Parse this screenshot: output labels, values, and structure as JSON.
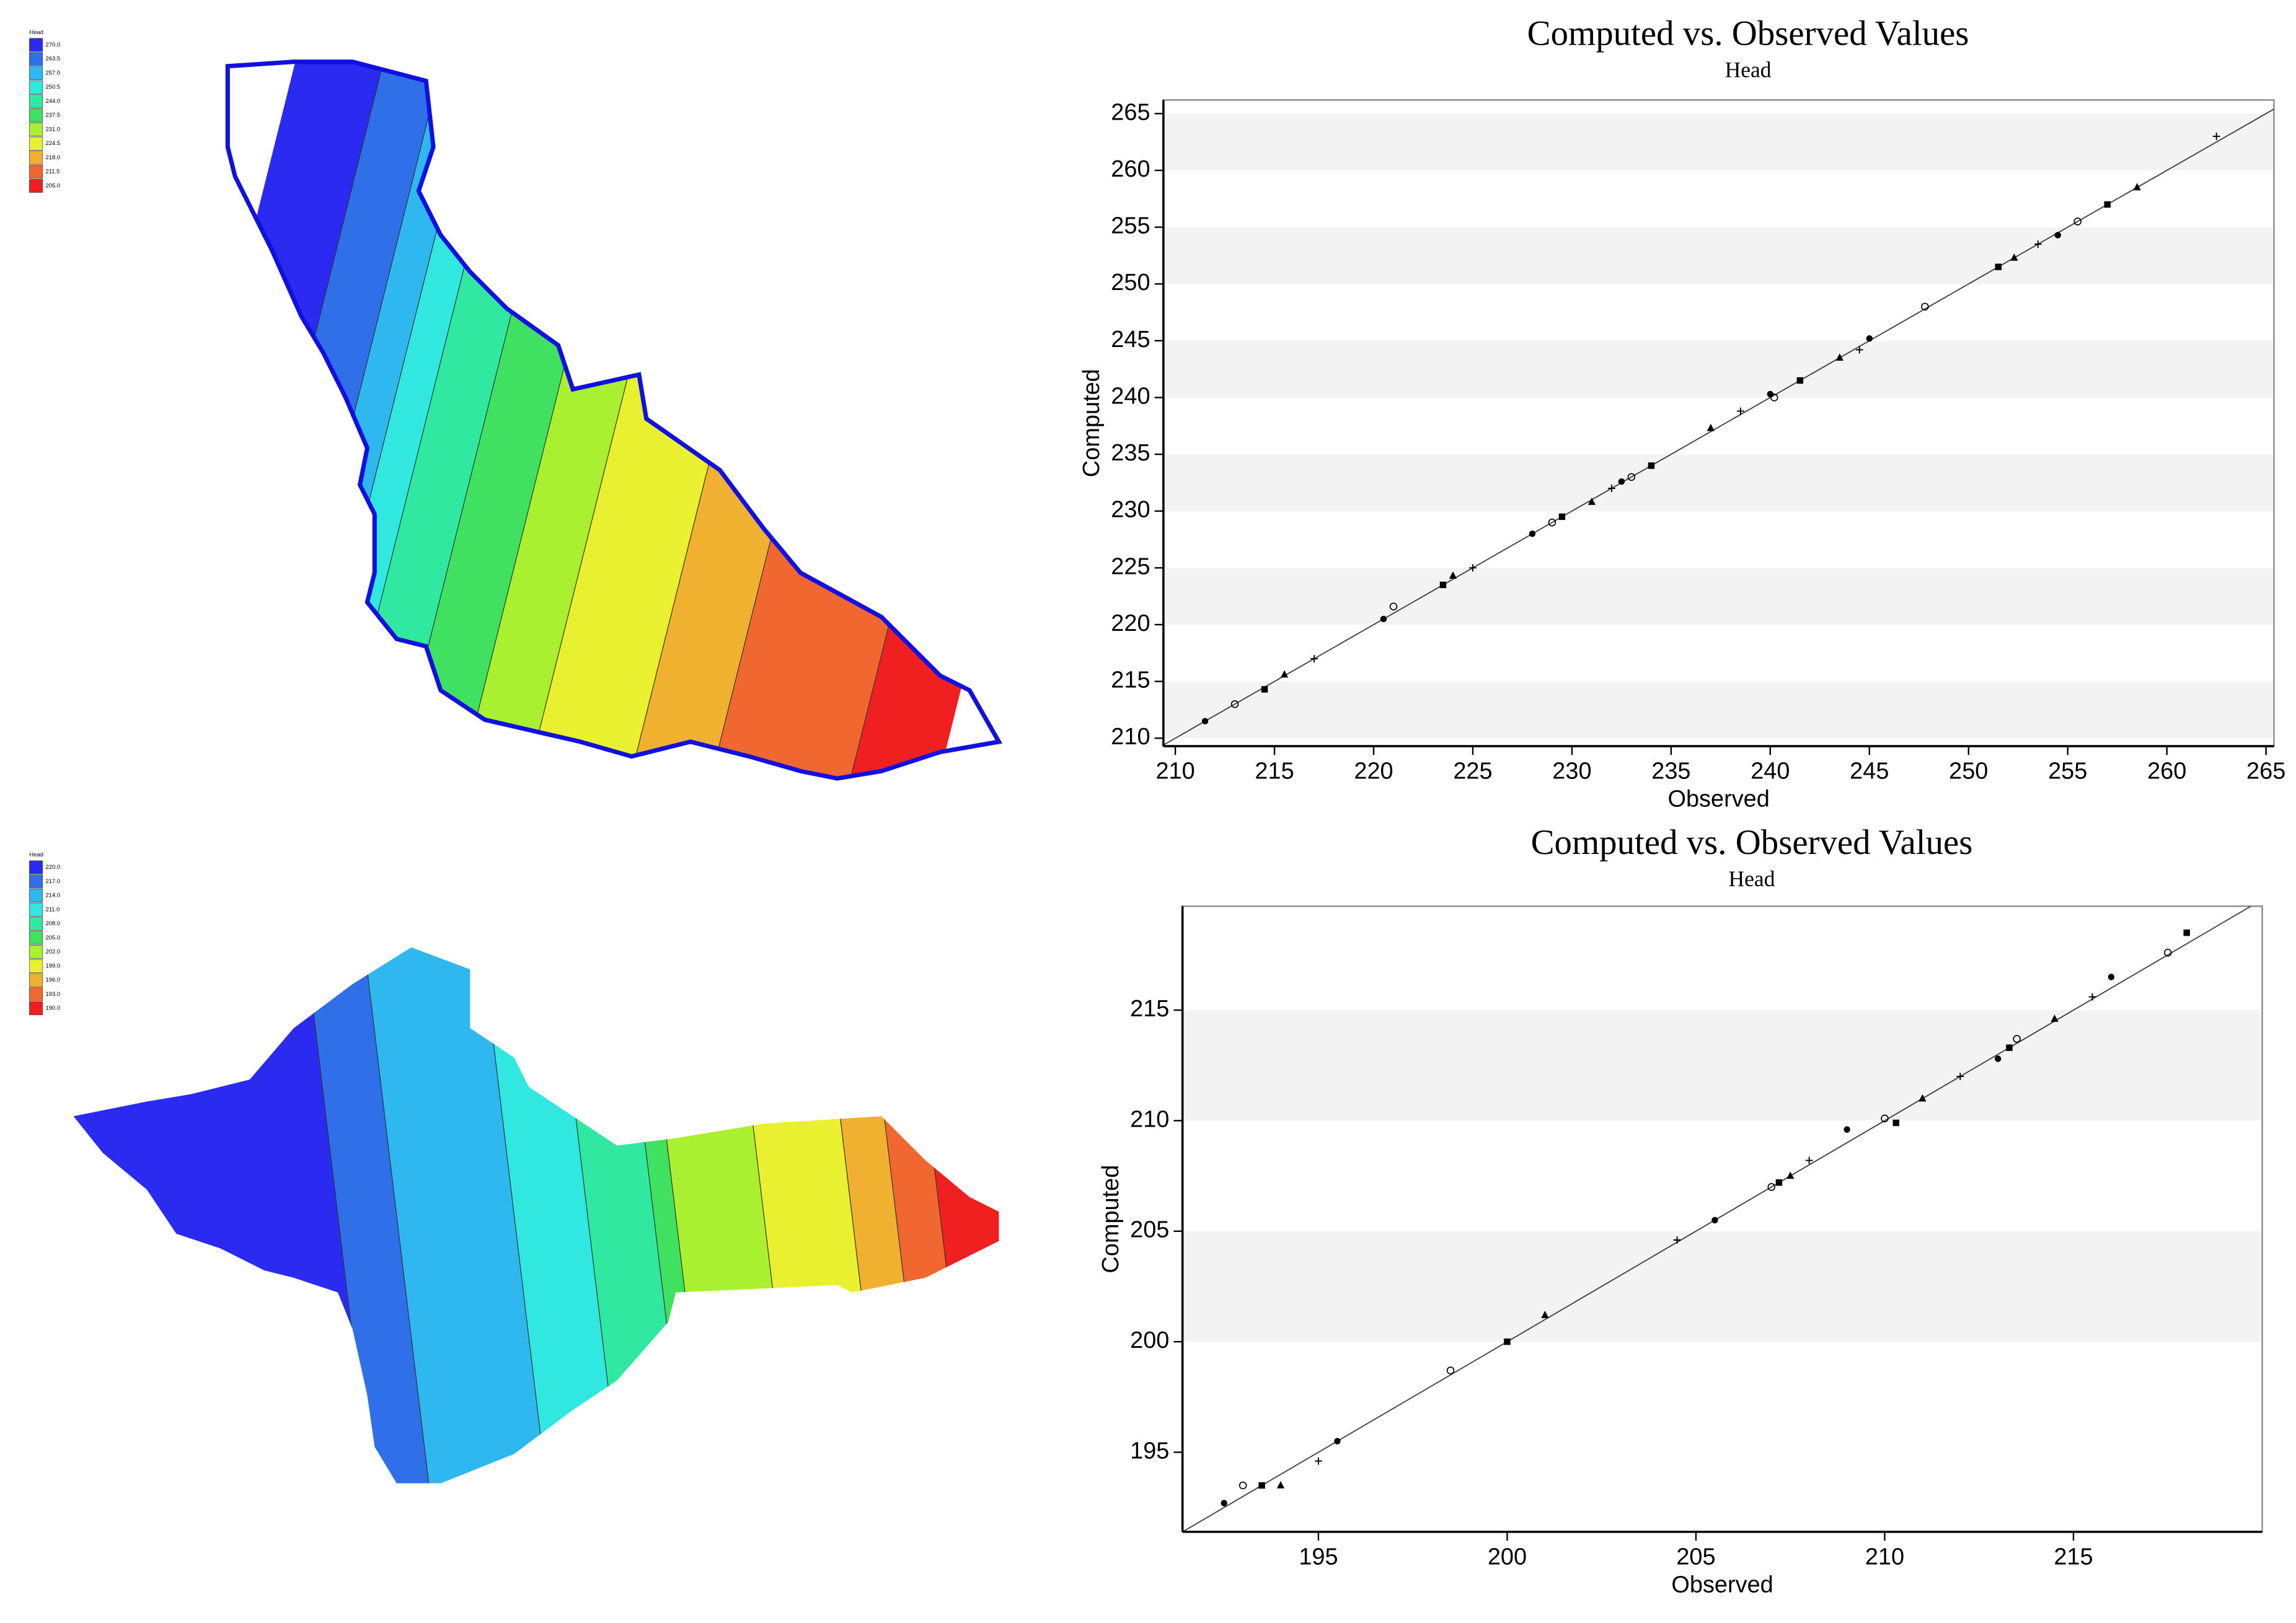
{
  "maps": [
    {
      "legend_title": "Head",
      "legend": [
        {
          "label": "270.0",
          "color": "#2a2af0"
        },
        {
          "label": "263.5",
          "color": "#2f6fe8"
        },
        {
          "label": "257.0",
          "color": "#2fb8f0"
        },
        {
          "label": "250.5",
          "color": "#30e8e0"
        },
        {
          "label": "244.0",
          "color": "#30e8a0"
        },
        {
          "label": "237.5",
          "color": "#40e060"
        },
        {
          "label": "231.0",
          "color": "#a8f030"
        },
        {
          "label": "224.5",
          "color": "#e8f030"
        },
        {
          "label": "218.0",
          "color": "#f0b030"
        },
        {
          "label": "211.5",
          "color": "#f06830"
        },
        {
          "label": "205.0",
          "color": "#f02020"
        }
      ]
    },
    {
      "legend_title": "Head",
      "legend": [
        {
          "label": "220.0",
          "color": "#2a2af0"
        },
        {
          "label": "217.0",
          "color": "#2f6fe8"
        },
        {
          "label": "214.0",
          "color": "#2fb8f0"
        },
        {
          "label": "211.0",
          "color": "#30e8e0"
        },
        {
          "label": "208.0",
          "color": "#30e8a0"
        },
        {
          "label": "205.0",
          "color": "#40e060"
        },
        {
          "label": "202.0",
          "color": "#a8f030"
        },
        {
          "label": "199.0",
          "color": "#e8f030"
        },
        {
          "label": "196.0",
          "color": "#f0b030"
        },
        {
          "label": "193.0",
          "color": "#f06830"
        },
        {
          "label": "190.0",
          "color": "#f02020"
        }
      ]
    }
  ],
  "chart_data": [
    {
      "type": "scatter",
      "title": "Computed vs. Observed Values",
      "subtitle": "Head",
      "x_label": "Observed",
      "y_label": "Computed",
      "color": "#000000",
      "grid": "bands",
      "xlim": [
        209.4,
        265.4
      ],
      "ylim": [
        209.3,
        266.2
      ],
      "xticks": [
        210,
        215,
        220,
        225,
        230,
        235,
        240,
        245,
        250,
        255,
        260,
        265
      ],
      "yticks": [
        210,
        215,
        220,
        225,
        230,
        235,
        240,
        245,
        250,
        255,
        260,
        265
      ],
      "x": [
        211.5,
        213,
        214.5,
        215.5,
        217,
        220.5,
        221,
        223.5,
        224,
        225,
        228,
        229,
        229.5,
        231,
        232,
        232.5,
        233,
        234,
        237,
        238.5,
        240,
        240.2,
        241.5,
        243.5,
        244.5,
        245,
        247.8,
        251.5,
        252.3,
        253.5,
        254.5,
        255.5,
        257,
        258.5,
        262.5
      ],
      "values": [
        211.5,
        213,
        214.3,
        215.6,
        217,
        220.5,
        221.6,
        223.5,
        224.3,
        225,
        228,
        229,
        229.5,
        230.8,
        232,
        232.6,
        233,
        234,
        237.3,
        238.8,
        240.3,
        240,
        241.5,
        243.5,
        244.2,
        245.2,
        248,
        251.5,
        252.3,
        253.5,
        254.3,
        255.5,
        257,
        258.5,
        263
      ]
    },
    {
      "type": "scatter",
      "title": "Computed vs. Observed Values",
      "subtitle": "Head",
      "x_label": "Observed",
      "y_label": "Computed",
      "color": "#000000",
      "grid": "bands",
      "xlim": [
        191.4,
        220
      ],
      "ylim": [
        191.4,
        219.7
      ],
      "xticks": [
        195,
        200,
        205,
        210,
        215
      ],
      "yticks": [
        195,
        200,
        205,
        210,
        215
      ],
      "x": [
        192.5,
        193,
        193.5,
        194,
        195,
        195.5,
        198.5,
        200,
        201,
        204.5,
        205.5,
        207,
        207.2,
        207.5,
        208,
        209,
        210,
        210.3,
        211,
        212,
        213,
        213.5,
        213.3,
        214.5,
        215.5,
        216,
        217.5,
        218
      ],
      "values": [
        192.7,
        193.5,
        193.5,
        193.5,
        194.6,
        195.5,
        198.7,
        200,
        201.2,
        204.6,
        205.5,
        207,
        207.2,
        207.5,
        208.2,
        209.6,
        210.1,
        209.9,
        211,
        212,
        212.8,
        213.7,
        213.3,
        214.6,
        215.6,
        216.5,
        217.6,
        218.5
      ]
    }
  ]
}
